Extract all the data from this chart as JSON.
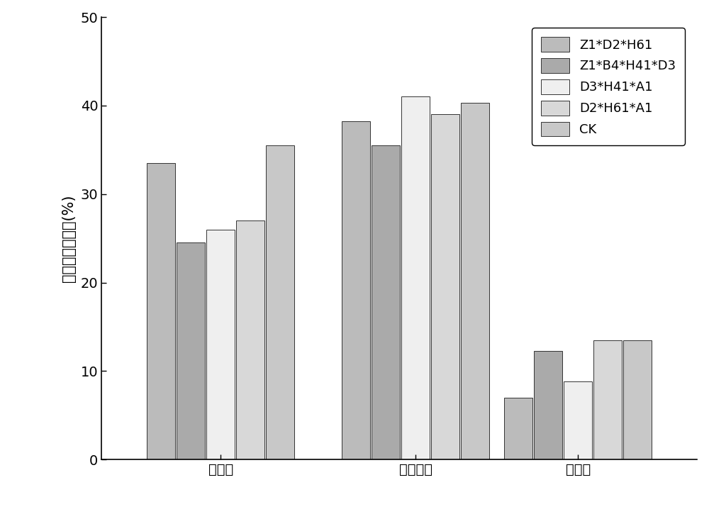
{
  "groups": [
    "纤维素",
    "半纤维素",
    "木质素"
  ],
  "series": [
    {
      "label": "Z1*D2*H61",
      "color": "#bbbbbb",
      "values": [
        33.5,
        38.2,
        7.0
      ]
    },
    {
      "label": "Z1*B4*H41*D3",
      "color": "#aaaaaa",
      "values": [
        24.5,
        35.5,
        12.3
      ]
    },
    {
      "label": "D3*H41*A1",
      "color": "#efefef",
      "values": [
        26.0,
        41.0,
        8.8
      ]
    },
    {
      "label": "D2*H61*A1",
      "color": "#d8d8d8",
      "values": [
        27.0,
        39.0,
        13.5
      ]
    },
    {
      "label": "CK",
      "color": "#c8c8c8",
      "values": [
        35.5,
        40.3,
        13.5
      ]
    }
  ],
  "ylabel": "木质纤维素含量(%)",
  "ylim": [
    0,
    50
  ],
  "yticks": [
    0,
    10,
    20,
    30,
    40,
    50
  ],
  "bar_width": 0.055,
  "group_centers": [
    0.22,
    0.58,
    0.88
  ],
  "xlim": [
    0.0,
    1.1
  ],
  "legend_fontsize": 13,
  "ylabel_fontsize": 15,
  "tick_fontsize": 14,
  "background_color": "#ffffff",
  "edge_color": "#333333"
}
